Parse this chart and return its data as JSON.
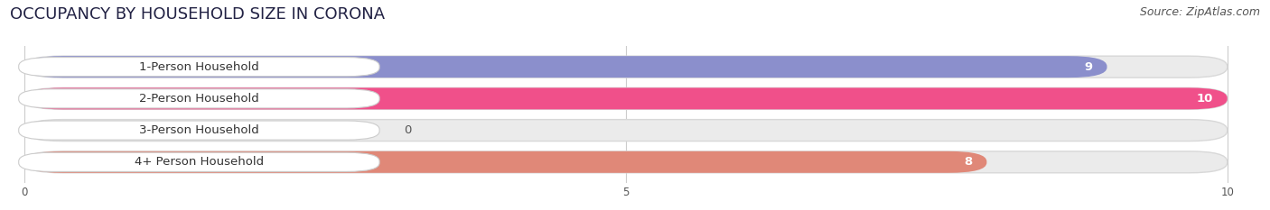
{
  "title": "OCCUPANCY BY HOUSEHOLD SIZE IN CORONA",
  "source": "Source: ZipAtlas.com",
  "categories": [
    "1-Person Household",
    "2-Person Household",
    "3-Person Household",
    "4+ Person Household"
  ],
  "values": [
    9,
    10,
    0,
    8
  ],
  "bar_colors": [
    "#8b8fcc",
    "#f0508a",
    "#f5c98a",
    "#e08878"
  ],
  "xlim": [
    0,
    10
  ],
  "xticks": [
    0,
    5,
    10
  ],
  "value_labels": [
    "9",
    "10",
    "0",
    "8"
  ],
  "background_color": "#ffffff",
  "bar_bg_color": "#ebebeb",
  "title_fontsize": 13,
  "source_fontsize": 9,
  "label_fontsize": 9.5,
  "value_fontsize": 9.5
}
